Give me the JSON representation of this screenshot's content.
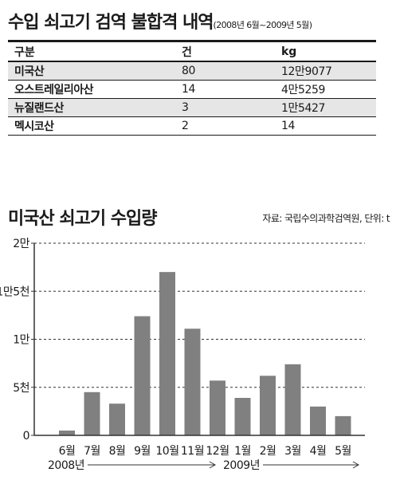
{
  "header": {
    "title": "수입 쇠고기 검역 불합격 내역",
    "period": "(2008년 6월~2009년 5월)"
  },
  "table": {
    "columns": [
      "구분",
      "건",
      "kg"
    ],
    "rows": [
      {
        "origin": "미국산",
        "cases": "80",
        "kg": "12만9077"
      },
      {
        "origin": "오스트레일리아산",
        "cases": "14",
        "kg": "4만5259"
      },
      {
        "origin": "뉴질랜드산",
        "cases": "3",
        "kg": "1만5427"
      },
      {
        "origin": "멕시코산",
        "cases": "2",
        "kg": "14"
      }
    ]
  },
  "chart_header": {
    "title": "미국산 쇠고기 수입량",
    "source": "자료: 국립수의과학검역원, 단위: t"
  },
  "chart_data": {
    "type": "bar",
    "categories": [
      "6월",
      "7월",
      "8월",
      "9월",
      "10월",
      "11월",
      "12월",
      "1월",
      "2월",
      "3월",
      "4월",
      "5월"
    ],
    "values": [
      500,
      4500,
      3300,
      12400,
      17000,
      11100,
      5700,
      3900,
      6200,
      7400,
      3000,
      2000
    ],
    "ylim": [
      0,
      20000
    ],
    "yticks": [
      {
        "value": 0,
        "label": "0"
      },
      {
        "value": 5000,
        "label": "5천"
      },
      {
        "value": 10000,
        "label": "1만"
      },
      {
        "value": 15000,
        "label": "1만5천"
      },
      {
        "value": 20000,
        "label": "2만"
      }
    ],
    "grid": "dashed horizontal",
    "year_labels": {
      "first": "2008년",
      "second": "2009년"
    },
    "bar_color": "#808080",
    "text_color": "#1a1a1a"
  }
}
